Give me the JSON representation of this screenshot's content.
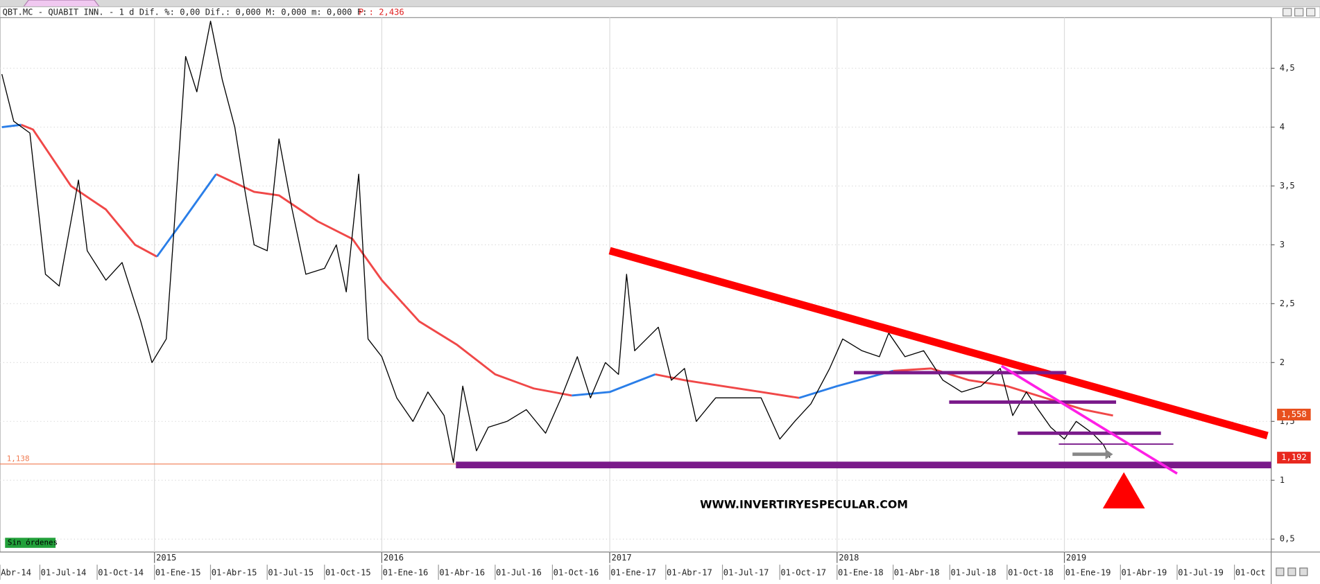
{
  "chart_data": {
    "type": "line",
    "header": "QBT.MC - QUABIT INN. -  1 d Dif. %: 0,00 Dif.: 0,000 M: 0,000 m: 0,000 F:",
    "price_text": "P : 2,436",
    "watermark": "WWW.INVERTIRYESPECULAR.COM",
    "status": "Sin órdenes",
    "grid": true,
    "xlim": [
      "2014-04-28",
      "2019-11-29"
    ],
    "ylim": [
      0.39,
      4.93
    ],
    "yticks": [
      {
        "value": 0.5,
        "label": "0,5"
      },
      1,
      {
        "value": 1.5,
        "label": "1,5"
      },
      2,
      {
        "value": 2.5,
        "label": "2,5"
      },
      3,
      {
        "value": 3.5,
        "label": "3,5"
      },
      4,
      {
        "value": 4.5,
        "label": "4,5"
      }
    ],
    "xticks": [
      {
        "value": "2014-04-01",
        "label": "Abr-14"
      },
      {
        "value": "2014-07-01",
        "label": "01-Jul-14"
      },
      {
        "value": "2014-10-01",
        "label": "01-Oct-14"
      },
      {
        "value": "2015-01-01",
        "label": "01-Ene-15"
      },
      {
        "value": "2015-04-01",
        "label": "01-Abr-15"
      },
      {
        "value": "2015-07-01",
        "label": "01-Jul-15"
      },
      {
        "value": "2015-10-01",
        "label": "01-Oct-15"
      },
      {
        "value": "2016-01-01",
        "label": "01-Ene-16"
      },
      {
        "value": "2016-04-01",
        "label": "01-Abr-16"
      },
      {
        "value": "2016-07-01",
        "label": "01-Jul-16"
      },
      {
        "value": "2016-10-01",
        "label": "01-Oct-16"
      },
      {
        "value": "2017-01-01",
        "label": "01-Ene-17"
      },
      {
        "value": "2017-04-01",
        "label": "01-Abr-17"
      },
      {
        "value": "2017-07-01",
        "label": "01-Jul-17"
      },
      {
        "value": "2017-10-01",
        "label": "01-Oct-17"
      },
      {
        "value": "2018-01-01",
        "label": "01-Ene-18"
      },
      {
        "value": "2018-04-01",
        "label": "01-Abr-18"
      },
      {
        "value": "2018-07-01",
        "label": "01-Jul-18"
      },
      {
        "value": "2018-10-01",
        "label": "01-Oct-18"
      },
      {
        "value": "2019-01-01",
        "label": "01-Ene-19"
      },
      {
        "value": "2019-04-01",
        "label": "01-Abr-19"
      },
      {
        "value": "2019-07-01",
        "label": "01-Jul-19"
      },
      {
        "value": "2019-10-01",
        "label": "01-Oct"
      }
    ],
    "year_ticks": [
      {
        "value": "2015-01-01",
        "label": "2015"
      },
      {
        "value": "2016-01-01",
        "label": "2016"
      },
      {
        "value": "2017-01-01",
        "label": "2017"
      },
      {
        "value": "2018-01-01",
        "label": "2018"
      },
      {
        "value": "2019-01-01",
        "label": "2019"
      }
    ],
    "series": [
      {
        "color": "#000000",
        "x": [
          "2014-05-01",
          "2014-05-20",
          "2014-06-15",
          "2014-07-10",
          "2014-08-01",
          "2014-09-01",
          "2014-09-15",
          "2014-10-15",
          "2014-11-10",
          "2014-12-10",
          "2014-12-28",
          "2015-01-20",
          "2015-02-01",
          "2015-02-20",
          "2015-03-10",
          "2015-04-01",
          "2015-04-20",
          "2015-05-10",
          "2015-05-25",
          "2015-06-10",
          "2015-07-01",
          "2015-07-20",
          "2015-08-10",
          "2015-09-01",
          "2015-10-01",
          "2015-10-20",
          "2015-11-05",
          "2015-11-25",
          "2015-12-10",
          "2016-01-01",
          "2016-01-25",
          "2016-02-20",
          "2016-03-15",
          "2016-04-10",
          "2016-04-25",
          "2016-05-10",
          "2016-06-01",
          "2016-06-20",
          "2016-07-20",
          "2016-08-20",
          "2016-09-20",
          "2016-10-15",
          "2016-11-10",
          "2016-12-01",
          "2016-12-25",
          "2017-01-15",
          "2017-01-28",
          "2017-02-10",
          "2017-03-01",
          "2017-03-20",
          "2017-04-10",
          "2017-05-01",
          "2017-05-20",
          "2017-06-20",
          "2017-08-01",
          "2017-09-01",
          "2017-10-01",
          "2017-10-25",
          "2017-11-20",
          "2017-12-20",
          "2018-01-10",
          "2018-02-10",
          "2018-03-10",
          "2018-03-25",
          "2018-04-20",
          "2018-05-20",
          "2018-06-20",
          "2018-07-20",
          "2018-08-20",
          "2018-09-20",
          "2018-10-10",
          "2018-11-01",
          "2018-11-20",
          "2018-12-10",
          "2019-01-01",
          "2019-01-20",
          "2019-02-15",
          "2019-03-05",
          "2019-03-15"
        ],
        "values": [
          4.45,
          4.05,
          3.95,
          2.75,
          2.65,
          3.55,
          2.95,
          2.7,
          2.85,
          2.35,
          2.0,
          2.2,
          3.1,
          4.6,
          4.3,
          4.9,
          4.4,
          4.0,
          3.5,
          3.0,
          2.95,
          3.9,
          3.3,
          2.75,
          2.8,
          3.0,
          2.6,
          3.6,
          2.2,
          2.05,
          1.7,
          1.5,
          1.75,
          1.55,
          1.15,
          1.8,
          1.25,
          1.45,
          1.5,
          1.6,
          1.4,
          1.7,
          2.05,
          1.7,
          2.0,
          1.9,
          2.75,
          2.1,
          2.2,
          2.3,
          1.85,
          1.95,
          1.5,
          1.7,
          1.7,
          1.7,
          1.35,
          1.5,
          1.65,
          1.95,
          2.2,
          2.1,
          2.05,
          2.25,
          2.05,
          2.1,
          1.85,
          1.75,
          1.8,
          1.95,
          1.55,
          1.75,
          1.6,
          1.45,
          1.35,
          1.5,
          1.4,
          1.3,
          1.192
        ]
      },
      {
        "color": "#f04848",
        "x": [
          "2014-05-01",
          "2014-06-01",
          "2014-06-20",
          "2014-08-20",
          "2014-10-15",
          "2014-12-01",
          "2015-01-05",
          "2015-02-15",
          "2015-04-10",
          "2015-06-10",
          "2015-07-20",
          "2015-09-20",
          "2015-11-15",
          "2016-01-01",
          "2016-03-01",
          "2016-05-01",
          "2016-07-01",
          "2016-09-01",
          "2016-11-01",
          "2017-01-01",
          "2017-03-15",
          "2017-05-01",
          "2017-07-01",
          "2017-09-01",
          "2017-11-01",
          "2018-01-01",
          "2018-04-01",
          "2018-06-01",
          "2018-08-01",
          "2018-10-01",
          "2018-12-01",
          "2019-02-01",
          "2019-03-20"
        ],
        "values": [
          null,
          4.02,
          3.98,
          3.5,
          3.3,
          3.0,
          2.9,
          null,
          3.6,
          3.45,
          3.42,
          3.2,
          3.05,
          2.7,
          2.35,
          2.15,
          1.9,
          1.78,
          1.72,
          null,
          1.9,
          1.85,
          1.8,
          1.75,
          1.7,
          null,
          1.93,
          1.95,
          1.85,
          1.8,
          1.7,
          1.6,
          1.55
        ]
      },
      {
        "color": "#2a7ee8",
        "x": [
          "2014-05-01",
          "2014-06-01",
          "2014-06-20",
          "2014-08-20",
          "2014-10-15",
          "2014-12-01",
          "2015-01-05",
          "2015-02-15",
          "2015-04-10",
          "2015-06-10",
          "2015-07-20",
          "2015-09-20",
          "2015-11-15",
          "2016-01-01",
          "2016-03-01",
          "2016-05-01",
          "2016-07-01",
          "2016-09-01",
          "2016-11-01",
          "2017-01-01",
          "2017-03-15",
          "2017-05-01",
          "2017-07-01",
          "2017-09-01",
          "2017-11-01",
          "2018-01-01",
          "2018-04-01",
          "2018-06-01",
          "2018-08-01",
          "2018-10-01",
          "2018-12-01",
          "2019-02-01",
          "2019-03-20"
        ],
        "values": [
          4.0,
          4.02,
          null,
          null,
          null,
          null,
          2.9,
          3.2,
          3.6,
          null,
          null,
          null,
          null,
          null,
          null,
          null,
          null,
          null,
          1.72,
          1.75,
          1.9,
          null,
          null,
          null,
          1.7,
          1.8,
          1.93,
          null,
          null,
          null,
          null,
          null,
          null
        ]
      }
    ],
    "level": {
      "value": 1.138,
      "label": "1,138",
      "color": "#f07a50",
      "x": [
        "2014-04-28",
        "2016-04-29"
      ]
    },
    "drawings": [
      {
        "color": "#ff0000",
        "x": [
          "2017-01-01",
          "2019-11-23"
        ],
        "values": [
          2.95,
          1.379
        ]
      },
      {
        "color": "#7a1a8a",
        "x": [
          "2016-04-29",
          "2019-11-29"
        ],
        "values": [
          1.13,
          1.13
        ]
      },
      {
        "color": "#7a1a8a",
        "x": [
          "2018-01-28",
          "2019-01-04"
        ],
        "values": [
          1.914,
          1.914
        ]
      },
      {
        "color": "#7a1a8a",
        "x": [
          "2018-06-30",
          "2019-03-25"
        ],
        "values": [
          1.664,
          1.664
        ]
      },
      {
        "color": "#7a1a8a",
        "x": [
          "2018-10-18",
          "2019-06-05"
        ],
        "values": [
          1.4,
          1.4
        ]
      },
      {
        "color": "#7a1a8a",
        "x": [
          "2018-12-23",
          "2019-06-25"
        ],
        "values": [
          1.307,
          1.307
        ]
      },
      {
        "color": "#ff1fe6",
        "x": [
          "2018-09-22",
          "2019-07-01"
        ],
        "values": [
          1.971,
          1.057
        ]
      },
      {
        "color": "#888888",
        "x": [
          "2019-01-14",
          "2019-03-20"
        ],
        "values": [
          1.221,
          1.221
        ]
      }
    ],
    "price_labels": [
      {
        "value": 1.558,
        "label": "1,558",
        "color": "#e8501e"
      },
      {
        "value": 1.192,
        "label": "1,192",
        "color": "#e8281e"
      }
    ]
  }
}
